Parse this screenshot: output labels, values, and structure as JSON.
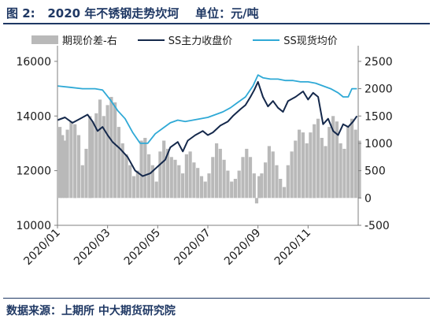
{
  "figure": {
    "title": "图 2:   2020 年不锈钢走势坎坷    单位：元/吨",
    "source": "数据来源：上期所 中大期货研究院"
  },
  "chart_data": {
    "type": "bar+line",
    "x_tick_labels": [
      "2020/01",
      "2020/03",
      "2020/05",
      "2020/07",
      "2020/09",
      "2020/11"
    ],
    "left_axis": {
      "ticks": [
        "10000",
        "12000",
        "14000",
        "16000"
      ],
      "ylim": [
        10000,
        16400
      ]
    },
    "right_axis": {
      "ticks": [
        "-500",
        "0",
        "500",
        "1000",
        "1500",
        "2000",
        "2500"
      ],
      "ylim": [
        -500,
        2700
      ]
    },
    "grid": false,
    "legend": {
      "placement": "top"
    },
    "series": [
      {
        "name": "期现价差-右",
        "kind": "bar",
        "axis": "right",
        "color": "#b9b9b9",
        "points": [
          [
            0,
            1300
          ],
          [
            0.1,
            1150
          ],
          [
            0.2,
            1050
          ],
          [
            0.3,
            1250
          ],
          [
            0.45,
            1400
          ],
          [
            0.6,
            1350
          ],
          [
            0.75,
            1150
          ],
          [
            0.9,
            600
          ],
          [
            1.05,
            900
          ],
          [
            1.2,
            1500
          ],
          [
            1.3,
            1400
          ],
          [
            1.45,
            1550
          ],
          [
            1.6,
            1800
          ],
          [
            1.75,
            1500
          ],
          [
            1.9,
            1700
          ],
          [
            2.05,
            1850
          ],
          [
            2.2,
            1750
          ],
          [
            2.35,
            1300
          ],
          [
            2.5,
            1000
          ],
          [
            2.65,
            800
          ],
          [
            2.8,
            600
          ],
          [
            2.95,
            400
          ],
          [
            3.1,
            500
          ],
          [
            3.25,
            1050
          ],
          [
            3.4,
            1100
          ],
          [
            3.55,
            800
          ],
          [
            3.7,
            600
          ],
          [
            3.85,
            300
          ],
          [
            4.0,
            850
          ],
          [
            4.15,
            1050
          ],
          [
            4.3,
            900
          ],
          [
            4.45,
            750
          ],
          [
            4.6,
            700
          ],
          [
            4.75,
            600
          ],
          [
            4.9,
            450
          ],
          [
            5.05,
            800
          ],
          [
            5.2,
            850
          ],
          [
            5.35,
            650
          ],
          [
            5.5,
            550
          ],
          [
            5.65,
            400
          ],
          [
            5.8,
            300
          ],
          [
            5.95,
            450
          ],
          [
            6.1,
            750
          ],
          [
            6.25,
            1000
          ],
          [
            6.4,
            900
          ],
          [
            6.55,
            700
          ],
          [
            6.7,
            500
          ],
          [
            6.85,
            300
          ],
          [
            7.0,
            350
          ],
          [
            7.15,
            500
          ],
          [
            7.3,
            750
          ],
          [
            7.45,
            900
          ],
          [
            7.6,
            750
          ],
          [
            7.75,
            450
          ],
          [
            7.85,
            -100
          ],
          [
            7.95,
            400
          ],
          [
            8.05,
            450
          ],
          [
            8.2,
            650
          ],
          [
            8.35,
            950
          ],
          [
            8.5,
            850
          ],
          [
            8.65,
            600
          ],
          [
            8.8,
            350
          ],
          [
            8.95,
            200
          ],
          [
            9.1,
            600
          ],
          [
            9.25,
            850
          ],
          [
            9.4,
            1050
          ],
          [
            9.55,
            1250
          ],
          [
            9.7,
            1200
          ],
          [
            9.85,
            1000
          ],
          [
            10.0,
            1200
          ],
          [
            10.15,
            1350
          ],
          [
            10.3,
            1450
          ],
          [
            10.45,
            1100
          ],
          [
            10.6,
            950
          ],
          [
            10.75,
            1300
          ],
          [
            10.9,
            1500
          ],
          [
            11.05,
            1400
          ],
          [
            11.2,
            1000
          ],
          [
            11.35,
            900
          ],
          [
            11.5,
            1300
          ],
          [
            11.65,
            1450
          ],
          [
            11.8,
            1250
          ],
          [
            11.95,
            1050
          ]
        ]
      },
      {
        "name": "SS主力收盘价",
        "kind": "line",
        "axis": "left",
        "color": "#14284b",
        "points": [
          [
            0,
            13850
          ],
          [
            0.3,
            13950
          ],
          [
            0.6,
            13750
          ],
          [
            0.9,
            13900
          ],
          [
            1.2,
            14050
          ],
          [
            1.4,
            13800
          ],
          [
            1.6,
            13450
          ],
          [
            1.8,
            13600
          ],
          [
            2.0,
            13300
          ],
          [
            2.2,
            13050
          ],
          [
            2.5,
            12800
          ],
          [
            2.8,
            12500
          ],
          [
            3.1,
            12000
          ],
          [
            3.4,
            11800
          ],
          [
            3.7,
            11900
          ],
          [
            4.0,
            12150
          ],
          [
            4.3,
            12400
          ],
          [
            4.5,
            12850
          ],
          [
            4.8,
            13050
          ],
          [
            5.0,
            12700
          ],
          [
            5.2,
            13100
          ],
          [
            5.5,
            13300
          ],
          [
            5.8,
            13450
          ],
          [
            6.0,
            13300
          ],
          [
            6.2,
            13400
          ],
          [
            6.5,
            13650
          ],
          [
            6.8,
            13800
          ],
          [
            7.0,
            14000
          ],
          [
            7.3,
            14250
          ],
          [
            7.5,
            14400
          ],
          [
            7.7,
            14700
          ],
          [
            7.85,
            14950
          ],
          [
            8.0,
            15250
          ],
          [
            8.2,
            14700
          ],
          [
            8.4,
            14350
          ],
          [
            8.6,
            14550
          ],
          [
            8.8,
            14300
          ],
          [
            9.0,
            14150
          ],
          [
            9.2,
            14550
          ],
          [
            9.5,
            14700
          ],
          [
            9.8,
            14900
          ],
          [
            10.0,
            14600
          ],
          [
            10.2,
            14850
          ],
          [
            10.4,
            14700
          ],
          [
            10.6,
            13700
          ],
          [
            10.8,
            13900
          ],
          [
            11.0,
            13450
          ],
          [
            11.2,
            13300
          ],
          [
            11.4,
            13700
          ],
          [
            11.6,
            13600
          ],
          [
            11.8,
            13800
          ],
          [
            11.95,
            14000
          ]
        ]
      },
      {
        "name": "SS现货均价",
        "kind": "line",
        "axis": "left",
        "color": "#2fa9d6",
        "points": [
          [
            0,
            15100
          ],
          [
            0.5,
            15050
          ],
          [
            1.0,
            15000
          ],
          [
            1.5,
            15000
          ],
          [
            1.8,
            14950
          ],
          [
            2.1,
            14600
          ],
          [
            2.4,
            14200
          ],
          [
            2.7,
            13900
          ],
          [
            3.0,
            13400
          ],
          [
            3.3,
            13000
          ],
          [
            3.6,
            13000
          ],
          [
            3.9,
            13350
          ],
          [
            4.2,
            13550
          ],
          [
            4.5,
            13750
          ],
          [
            4.8,
            13850
          ],
          [
            5.1,
            13800
          ],
          [
            5.4,
            13850
          ],
          [
            5.7,
            13900
          ],
          [
            6.0,
            13950
          ],
          [
            6.3,
            14050
          ],
          [
            6.6,
            14150
          ],
          [
            6.9,
            14300
          ],
          [
            7.2,
            14500
          ],
          [
            7.5,
            14700
          ],
          [
            7.8,
            15100
          ],
          [
            8.0,
            15500
          ],
          [
            8.2,
            15400
          ],
          [
            8.5,
            15350
          ],
          [
            8.8,
            15350
          ],
          [
            9.1,
            15300
          ],
          [
            9.4,
            15300
          ],
          [
            9.7,
            15250
          ],
          [
            10.0,
            15250
          ],
          [
            10.3,
            15200
          ],
          [
            10.6,
            15100
          ],
          [
            10.9,
            15000
          ],
          [
            11.2,
            14850
          ],
          [
            11.4,
            14700
          ],
          [
            11.6,
            14700
          ],
          [
            11.75,
            15000
          ],
          [
            11.95,
            15000
          ]
        ]
      }
    ]
  }
}
